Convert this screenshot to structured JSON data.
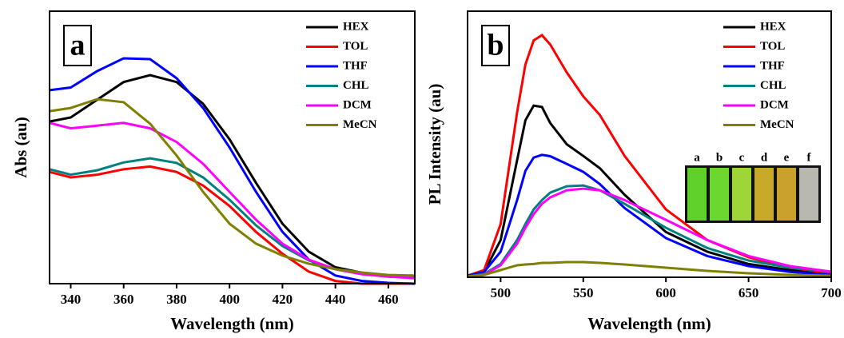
{
  "chart_data": [
    {
      "type": "line",
      "panel_label": "a",
      "x_label": "Wavelength (nm)",
      "y_label": "Abs (au)",
      "x": [
        332,
        340,
        350,
        360,
        370,
        380,
        390,
        400,
        410,
        420,
        430,
        440,
        450,
        460,
        470
      ],
      "xlim": [
        332,
        470
      ],
      "xticks": [
        340,
        360,
        380,
        400,
        420,
        440,
        460
      ],
      "ylim": [
        0,
        1
      ],
      "series": [
        {
          "name": "HEX",
          "color": "#000000",
          "values": [
            0.595,
            0.61,
            0.675,
            0.74,
            0.765,
            0.74,
            0.66,
            0.53,
            0.37,
            0.22,
            0.117,
            0.06,
            0.04,
            0.026,
            0.023
          ]
        },
        {
          "name": "TOL",
          "color": "#ff0000",
          "values": [
            0.41,
            0.39,
            0.4,
            0.42,
            0.43,
            0.41,
            0.36,
            0.285,
            0.19,
            0.11,
            0.044,
            0.01,
            0,
            0,
            0
          ]
        },
        {
          "name": "THF",
          "color": "#0000ff",
          "values": [
            0.71,
            0.72,
            0.78,
            0.827,
            0.824,
            0.754,
            0.645,
            0.5,
            0.337,
            0.19,
            0.088,
            0.03,
            0.01,
            0.003,
            0
          ]
        },
        {
          "name": "CHL",
          "color": "#008080",
          "values": [
            0.42,
            0.4,
            0.416,
            0.445,
            0.46,
            0.443,
            0.39,
            0.308,
            0.214,
            0.138,
            0.085,
            0.053,
            0.035,
            0.026,
            0.023
          ]
        },
        {
          "name": "DCM",
          "color": "#ff00ff",
          "values": [
            0.59,
            0.57,
            0.58,
            0.59,
            0.57,
            0.52,
            0.44,
            0.337,
            0.235,
            0.147,
            0.088,
            0.053,
            0.035,
            0.026,
            0.02
          ]
        },
        {
          "name": "MeCN",
          "color": "#808000",
          "values": [
            0.633,
            0.645,
            0.677,
            0.666,
            0.587,
            0.47,
            0.337,
            0.22,
            0.147,
            0.103,
            0.073,
            0.053,
            0.041,
            0.032,
            0.03
          ]
        }
      ]
    },
    {
      "type": "line",
      "panel_label": "b",
      "x_label": "Wavelength (nm)",
      "y_label": "PL Intensity (au)",
      "x": [
        480,
        490,
        500,
        510,
        515,
        520,
        525,
        530,
        540,
        550,
        560,
        575,
        600,
        625,
        650,
        675,
        700
      ],
      "xlim": [
        480,
        700
      ],
      "xticks": [
        500,
        550,
        600,
        650,
        700
      ],
      "ylim": [
        0,
        1
      ],
      "inset_labels": [
        "a",
        "b",
        "c",
        "d",
        "e",
        "f"
      ],
      "series": [
        {
          "name": "HEX",
          "color": "#000000",
          "values": [
            0.006,
            0.02,
            0.14,
            0.44,
            0.59,
            0.645,
            0.64,
            0.58,
            0.5,
            0.456,
            0.41,
            0.31,
            0.17,
            0.096,
            0.05,
            0.027,
            0.012
          ]
        },
        {
          "name": "TOL",
          "color": "#ff0000",
          "values": [
            0.006,
            0.027,
            0.2,
            0.62,
            0.8,
            0.89,
            0.91,
            0.875,
            0.77,
            0.68,
            0.61,
            0.456,
            0.255,
            0.14,
            0.075,
            0.036,
            0.015
          ]
        },
        {
          "name": "THF",
          "color": "#0000ff",
          "values": [
            0.006,
            0.02,
            0.096,
            0.29,
            0.4,
            0.45,
            0.46,
            0.455,
            0.426,
            0.396,
            0.35,
            0.26,
            0.147,
            0.08,
            0.042,
            0.02,
            0.009
          ]
        },
        {
          "name": "CHL",
          "color": "#008080",
          "values": [
            0.003,
            0.012,
            0.05,
            0.14,
            0.2,
            0.255,
            0.29,
            0.318,
            0.342,
            0.345,
            0.327,
            0.276,
            0.186,
            0.11,
            0.063,
            0.036,
            0.021
          ]
        },
        {
          "name": "DCM",
          "color": "#ff00ff",
          "values": [
            0.003,
            0.009,
            0.045,
            0.126,
            0.186,
            0.237,
            0.276,
            0.3,
            0.327,
            0.333,
            0.327,
            0.29,
            0.216,
            0.14,
            0.08,
            0.042,
            0.021
          ]
        },
        {
          "name": "MeCN",
          "color": "#808000",
          "values": [
            0.003,
            0.009,
            0.027,
            0.045,
            0.048,
            0.05,
            0.054,
            0.054,
            0.057,
            0.057,
            0.054,
            0.048,
            0.036,
            0.024,
            0.015,
            0.009,
            0.006
          ]
        }
      ]
    }
  ]
}
